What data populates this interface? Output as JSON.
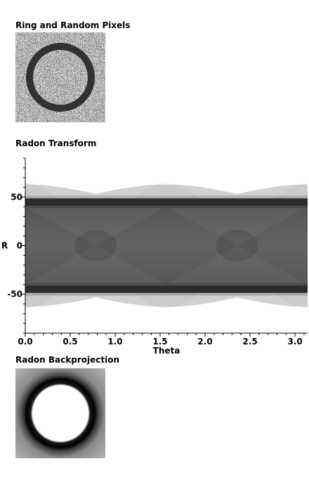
{
  "panels": {
    "ring": {
      "title": "Ring and Random Pixels"
    },
    "radon": {
      "title": "Radon Transform"
    },
    "backprojection": {
      "title": "Radon Backprojection"
    }
  },
  "chart_data": {
    "type": "heatmap",
    "title": "Radon Transform",
    "xlabel": "Theta",
    "ylabel": "R",
    "xlim": [
      0,
      3.14
    ],
    "ylim": [
      -90,
      90
    ],
    "x_ticks": [
      0.0,
      0.5,
      1.0,
      1.5,
      2.0,
      2.5,
      3.0
    ],
    "x_tick_labels": [
      "0.0",
      "0.5",
      "1.0",
      "1.5",
      "2.0",
      "2.5",
      "3.0"
    ],
    "y_ticks": [
      50,
      0,
      -50
    ],
    "y_tick_labels": [
      "50",
      "0",
      "-50"
    ],
    "colormap": "inverted-grayscale",
    "features": {
      "dark_band_R": [
        45,
        -45
      ],
      "sinusoid_amplitude_R": 64,
      "sinusoid_crossings_theta": [
        1.57
      ]
    }
  }
}
